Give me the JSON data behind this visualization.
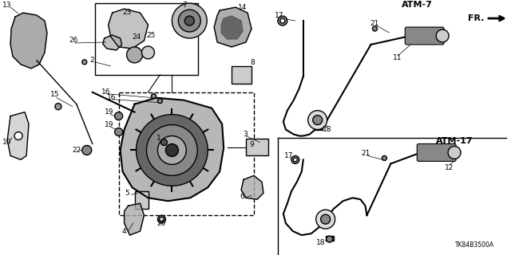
{
  "background_color": "#ffffff",
  "watermark": "TK84B3500A",
  "fr_label": "FR.",
  "atm_labels": [
    "ATM-7",
    "ATM-17"
  ]
}
